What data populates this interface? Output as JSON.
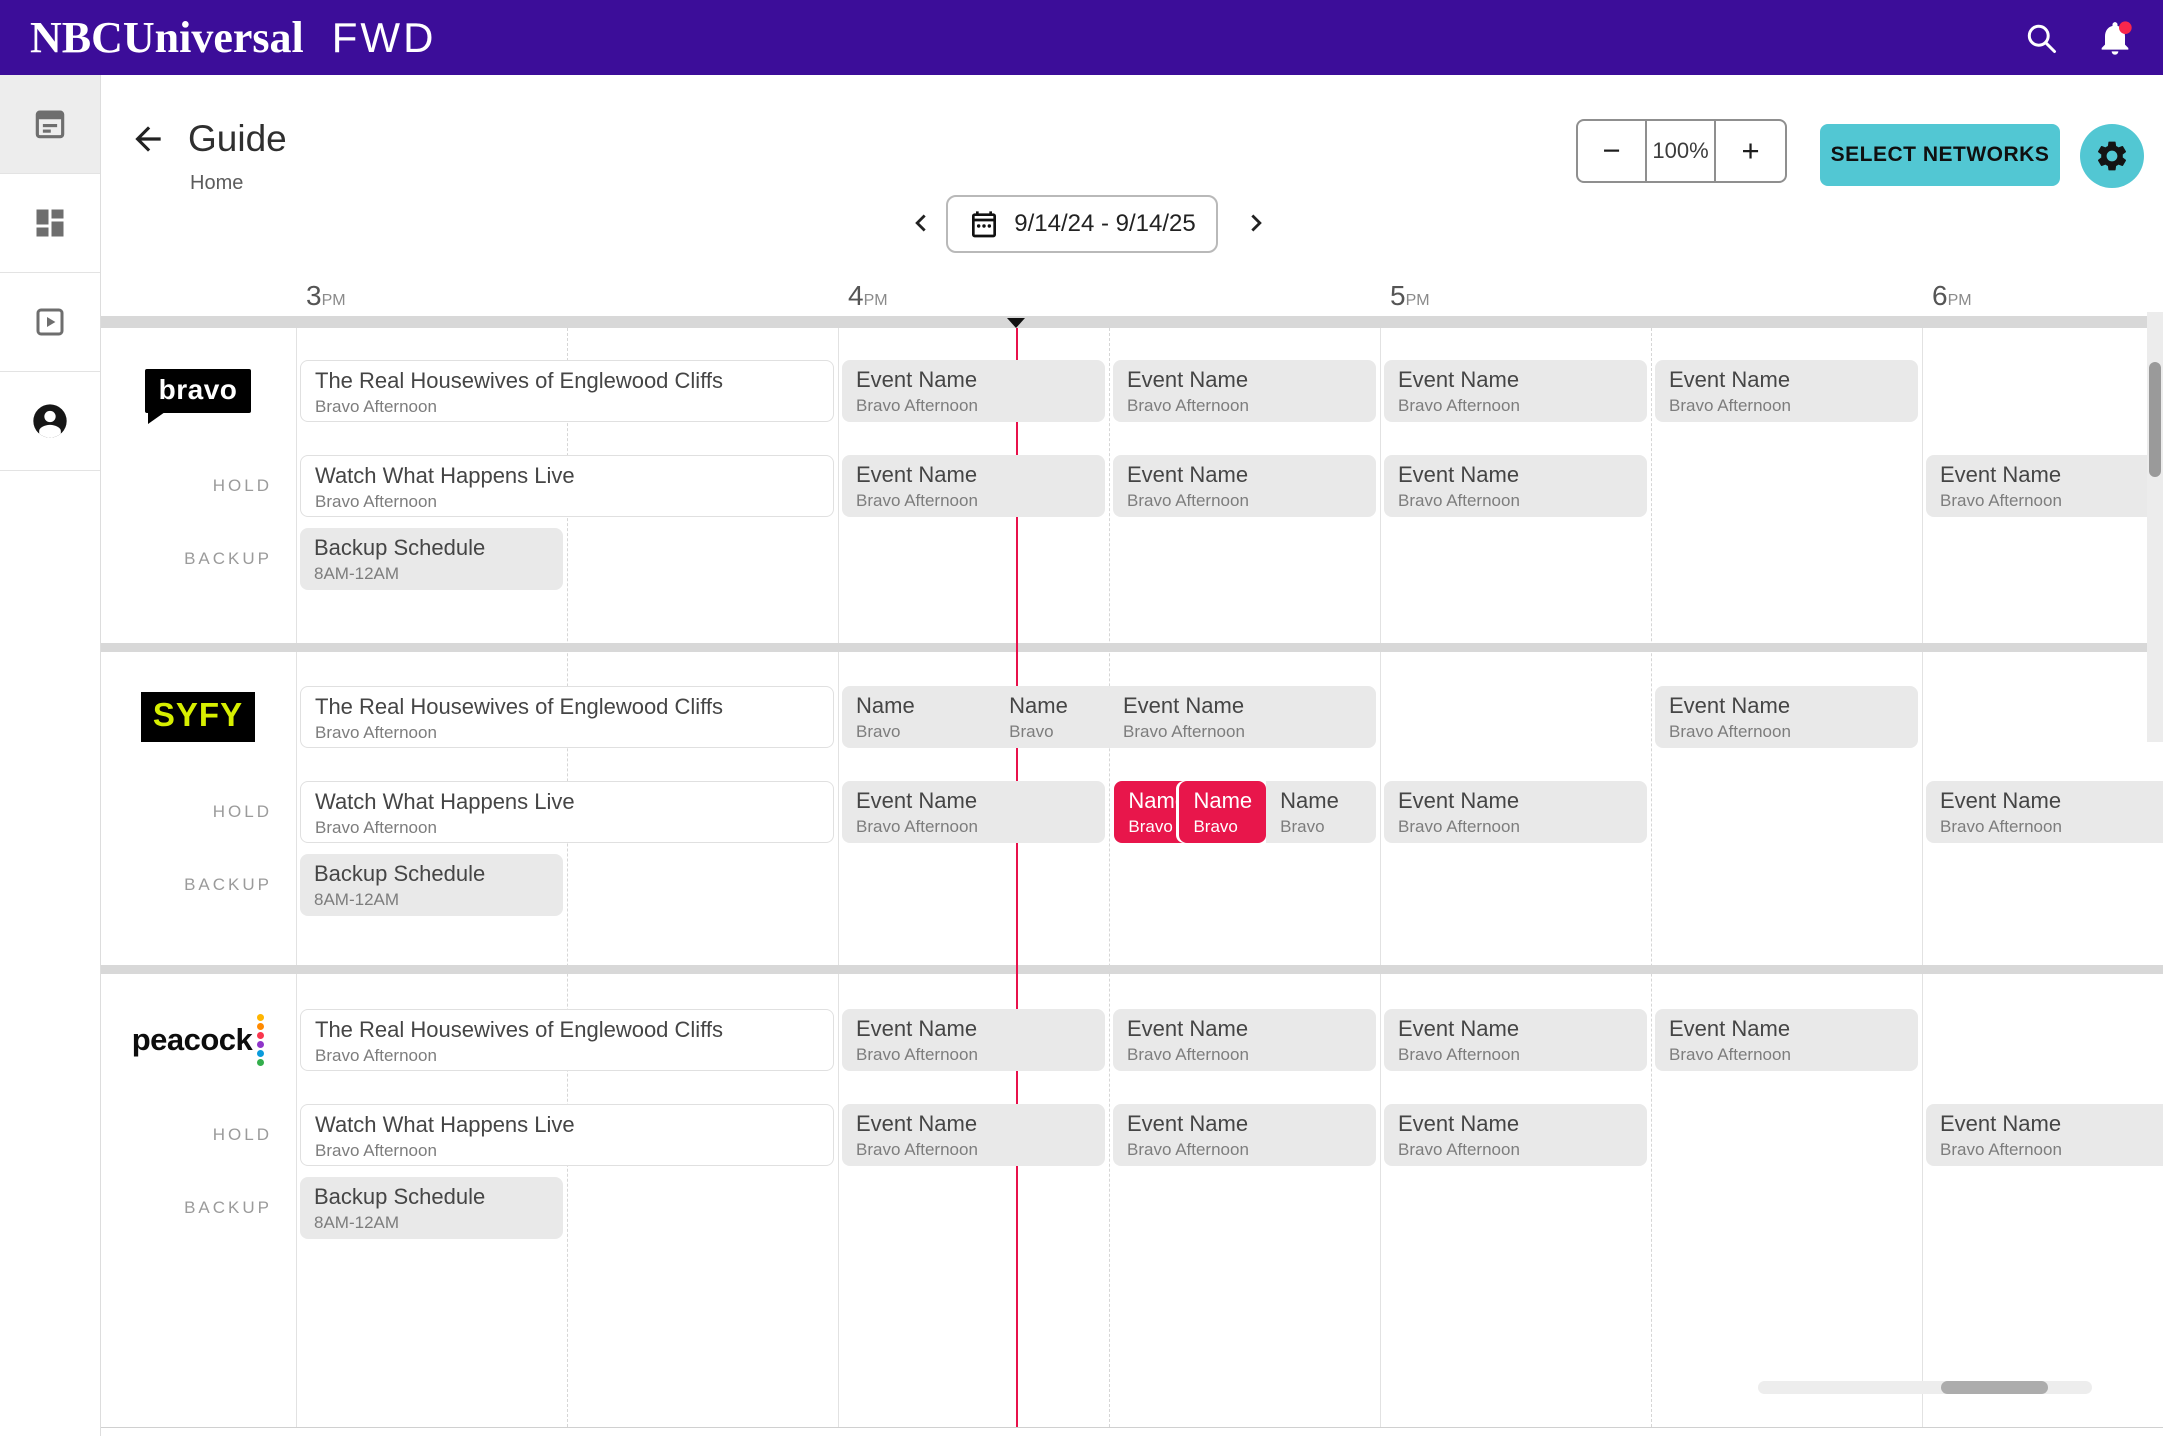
{
  "app_bar": {
    "brand": "NBCUniversal",
    "product": "FWD",
    "icons": [
      "search-icon",
      "bell-icon"
    ]
  },
  "sidebar": {
    "items": [
      {
        "id": "guide",
        "icon": "calendar-note-icon",
        "active": true
      },
      {
        "id": "dashboard",
        "icon": "dashboard-icon",
        "active": false
      },
      {
        "id": "media",
        "icon": "video-icon",
        "active": false
      },
      {
        "id": "account",
        "icon": "account-circle-icon",
        "active": false
      }
    ]
  },
  "page_header": {
    "title": "Guide",
    "breadcrumb": "Home",
    "back_icon": "arrow-left-icon"
  },
  "toolbar": {
    "zoom_out": "−",
    "zoom_value": "100%",
    "zoom_in": "+",
    "select_networks": "SELECT NETWORKS",
    "settings_icon": "gear-icon"
  },
  "date_nav": {
    "prev_icon": "chevron-left-icon",
    "next_icon": "chevron-right-icon",
    "calendar_icon": "calendar-icon",
    "range": "9/14/24 - 9/14/25"
  },
  "timeline": {
    "hours": [
      {
        "label": "3",
        "meridiem": "PM",
        "t": 15
      },
      {
        "label": "4",
        "meridiem": "PM",
        "t": 16
      },
      {
        "label": "5",
        "meridiem": "PM",
        "t": 17
      },
      {
        "label": "6",
        "meridiem": "PM",
        "t": 18
      }
    ],
    "now_t": 16.33
  },
  "row_labels": {
    "hold": "HOLD",
    "backup": "BACKUP"
  },
  "colors": {
    "accent_purple": "#3C0D99",
    "teal": "#52C7D3",
    "alert_red": "#E8114B",
    "event_gray": "#E9E9E9",
    "syfy_yellow": "#D7EF00",
    "peacock_dots": [
      "#FFB500",
      "#FF8A00",
      "#F9364D",
      "#8F35C9",
      "#0A9BDC",
      "#33AE4C"
    ]
  },
  "channels": [
    {
      "id": "bravo",
      "logo_text": "bravo",
      "rows": {
        "main": [
          {
            "title": "The Real Housewives of Englewood Cliffs",
            "subtitle": "Bravo Afternoon",
            "start": 15,
            "end": 16,
            "variant": "white"
          },
          {
            "title": "Event Name",
            "subtitle": "Bravo Afternoon",
            "start": 16,
            "end": 16.5,
            "variant": "gray"
          },
          {
            "title": "Event Name",
            "subtitle": "Bravo Afternoon",
            "start": 16.5,
            "end": 17,
            "variant": "gray"
          },
          {
            "title": "Event Name",
            "subtitle": "Bravo Afternoon",
            "start": 17,
            "end": 17.5,
            "variant": "gray"
          },
          {
            "title": "Event Name",
            "subtitle": "Bravo Afternoon",
            "start": 17.5,
            "end": 18,
            "variant": "gray"
          }
        ],
        "hold": [
          {
            "title": "Watch What Happens Live",
            "subtitle": "Bravo Afternoon",
            "start": 15,
            "end": 16,
            "variant": "white"
          },
          {
            "title": "Event Name",
            "subtitle": "Bravo Afternoon",
            "start": 16,
            "end": 16.5,
            "variant": "gray"
          },
          {
            "title": "Event Name",
            "subtitle": "Bravo Afternoon",
            "start": 16.5,
            "end": 17,
            "variant": "gray"
          },
          {
            "title": "Event Name",
            "subtitle": "Bravo Afternoon",
            "start": 17,
            "end": 17.5,
            "variant": "gray"
          },
          {
            "title": "Event Name",
            "subtitle": "Bravo Afternoon",
            "start": 18,
            "end": 18.5,
            "variant": "gray"
          }
        ],
        "backup": [
          {
            "title": "Backup Schedule",
            "subtitle": "8AM-12AM",
            "start": 15,
            "end": 15.5,
            "variant": "gray"
          }
        ]
      }
    },
    {
      "id": "syfy",
      "logo_text": "SYFY",
      "rows": {
        "main": [
          {
            "title": "The Real Housewives of Englewood Cliffs",
            "subtitle": "Bravo Afternoon",
            "start": 15,
            "end": 16,
            "variant": "white"
          },
          {
            "title": "Name",
            "subtitle": "Bravo",
            "start": 16,
            "end": 16.29,
            "variant": "gray",
            "merge": "right"
          },
          {
            "title": "Name",
            "subtitle": "Bravo",
            "start": 16.29,
            "end": 16.5,
            "variant": "gray",
            "merge": "both"
          },
          {
            "title": "Event Name",
            "subtitle": "Bravo Afternoon",
            "start": 16.5,
            "end": 17,
            "variant": "gray",
            "merge": "left"
          },
          {
            "title": "Event Name",
            "subtitle": "Bravo Afternoon",
            "start": 17.5,
            "end": 18,
            "variant": "gray"
          }
        ],
        "hold": [
          {
            "title": "Watch What Happens Live",
            "subtitle": "Bravo Afternoon",
            "start": 15,
            "end": 16,
            "variant": "white"
          },
          {
            "title": "Event Name",
            "subtitle": "Bravo Afternoon",
            "start": 16,
            "end": 16.5,
            "variant": "gray"
          },
          {
            "title": "Name",
            "subtitle": "Bravo",
            "start": 16.51,
            "end": 16.66,
            "variant": "red"
          },
          {
            "title": "Name",
            "subtitle": "Bravo",
            "start": 16.63,
            "end": 16.79,
            "variant": "red",
            "overlap": true
          },
          {
            "title": "Name",
            "subtitle": "Bravo",
            "start": 16.79,
            "end": 17,
            "variant": "gray",
            "merge": "left"
          },
          {
            "title": "Event Name",
            "subtitle": "Bravo Afternoon",
            "start": 17,
            "end": 17.5,
            "variant": "gray"
          },
          {
            "title": "Event Name",
            "subtitle": "Bravo Afternoon",
            "start": 18,
            "end": 18.5,
            "variant": "gray"
          }
        ],
        "backup": [
          {
            "title": "Backup Schedule",
            "subtitle": "8AM-12AM",
            "start": 15,
            "end": 15.5,
            "variant": "gray"
          }
        ]
      }
    },
    {
      "id": "peacock",
      "logo_text": "peacock",
      "rows": {
        "main": [
          {
            "title": "The Real Housewives of Englewood Cliffs",
            "subtitle": "Bravo Afternoon",
            "start": 15,
            "end": 16,
            "variant": "white"
          },
          {
            "title": "Event Name",
            "subtitle": "Bravo Afternoon",
            "start": 16,
            "end": 16.5,
            "variant": "gray"
          },
          {
            "title": "Event Name",
            "subtitle": "Bravo Afternoon",
            "start": 16.5,
            "end": 17,
            "variant": "gray"
          },
          {
            "title": "Event Name",
            "subtitle": "Bravo Afternoon",
            "start": 17,
            "end": 17.5,
            "variant": "gray"
          },
          {
            "title": "Event Name",
            "subtitle": "Bravo Afternoon",
            "start": 17.5,
            "end": 18,
            "variant": "gray"
          }
        ],
        "hold": [
          {
            "title": "Watch What Happens Live",
            "subtitle": "Bravo Afternoon",
            "start": 15,
            "end": 16,
            "variant": "white"
          },
          {
            "title": "Event Name",
            "subtitle": "Bravo Afternoon",
            "start": 16,
            "end": 16.5,
            "variant": "gray"
          },
          {
            "title": "Event Name",
            "subtitle": "Bravo Afternoon",
            "start": 16.5,
            "end": 17,
            "variant": "gray"
          },
          {
            "title": "Event Name",
            "subtitle": "Bravo Afternoon",
            "start": 17,
            "end": 17.5,
            "variant": "gray"
          },
          {
            "title": "Event Name",
            "subtitle": "Bravo Afternoon",
            "start": 18,
            "end": 18.5,
            "variant": "gray"
          }
        ],
        "backup": [
          {
            "title": "Backup Schedule",
            "subtitle": "8AM-12AM",
            "start": 15,
            "end": 15.5,
            "variant": "gray"
          }
        ]
      }
    }
  ]
}
